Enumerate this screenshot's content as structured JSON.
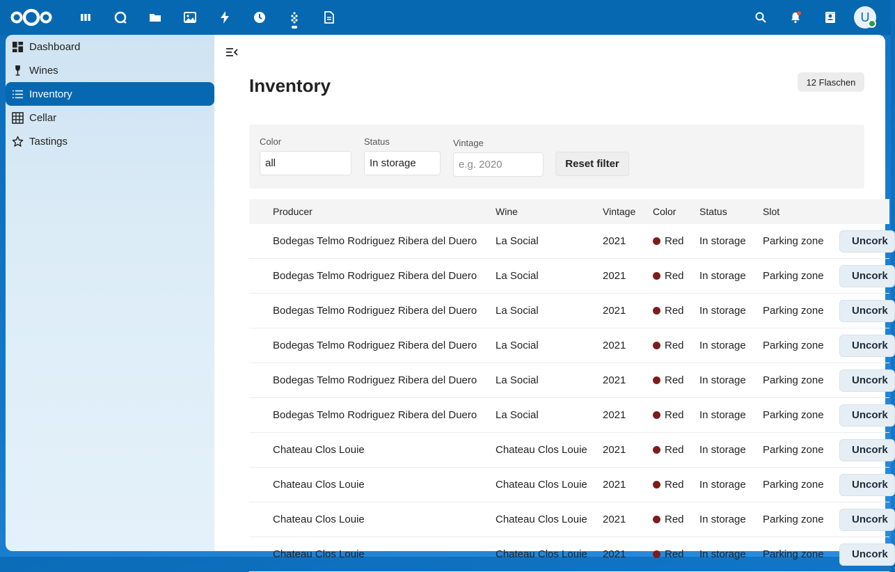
{
  "header": {
    "logo": "nextcloud-logo",
    "apps": [
      {
        "name": "dashboard-app-icon"
      },
      {
        "name": "talk-app-icon"
      },
      {
        "name": "files-app-icon"
      },
      {
        "name": "photos-app-icon"
      },
      {
        "name": "activity-app-icon"
      },
      {
        "name": "recent-app-icon"
      },
      {
        "name": "wine-app-icon"
      },
      {
        "name": "notes-app-icon"
      }
    ],
    "avatar_initial": "U"
  },
  "sidebar": {
    "items": [
      {
        "label": "Dashboard",
        "icon": "dashboard-icon"
      },
      {
        "label": "Wines",
        "icon": "wine-glass-icon"
      },
      {
        "label": "Inventory",
        "icon": "list-icon",
        "active": true
      },
      {
        "label": "Cellar",
        "icon": "grid-icon"
      },
      {
        "label": "Tastings",
        "icon": "star-icon"
      }
    ]
  },
  "main": {
    "title": "Inventory",
    "count_badge": "12 Flaschen",
    "filters": {
      "color_label": "Color",
      "color_value": "all",
      "status_label": "Status",
      "status_value": "In storage",
      "vintage_label": "Vintage",
      "vintage_placeholder": "e.g. 2020",
      "reset_label": "Reset filter"
    },
    "table": {
      "headers": [
        "Producer",
        "Wine",
        "Vintage",
        "Color",
        "Status",
        "Slot"
      ],
      "action_label": "Uncork",
      "rows": [
        {
          "producer": "Bodegas Telmo Rodriguez Ribera del Duero",
          "wine": "La Social",
          "vintage": "2021",
          "color": "Red",
          "status": "In storage",
          "slot": "Parking zone"
        },
        {
          "producer": "Bodegas Telmo Rodriguez Ribera del Duero",
          "wine": "La Social",
          "vintage": "2021",
          "color": "Red",
          "status": "In storage",
          "slot": "Parking zone"
        },
        {
          "producer": "Bodegas Telmo Rodriguez Ribera del Duero",
          "wine": "La Social",
          "vintage": "2021",
          "color": "Red",
          "status": "In storage",
          "slot": "Parking zone"
        },
        {
          "producer": "Bodegas Telmo Rodriguez Ribera del Duero",
          "wine": "La Social",
          "vintage": "2021",
          "color": "Red",
          "status": "In storage",
          "slot": "Parking zone"
        },
        {
          "producer": "Bodegas Telmo Rodriguez Ribera del Duero",
          "wine": "La Social",
          "vintage": "2021",
          "color": "Red",
          "status": "In storage",
          "slot": "Parking zone"
        },
        {
          "producer": "Bodegas Telmo Rodriguez Ribera del Duero",
          "wine": "La Social",
          "vintage": "2021",
          "color": "Red",
          "status": "In storage",
          "slot": "Parking zone"
        },
        {
          "producer": "Chateau Clos Louie",
          "wine": "Chateau Clos Louie",
          "vintage": "2021",
          "color": "Red",
          "status": "In storage",
          "slot": "Parking zone"
        },
        {
          "producer": "Chateau Clos Louie",
          "wine": "Chateau Clos Louie",
          "vintage": "2021",
          "color": "Red",
          "status": "In storage",
          "slot": "Parking zone"
        },
        {
          "producer": "Chateau Clos Louie",
          "wine": "Chateau Clos Louie",
          "vintage": "2021",
          "color": "Red",
          "status": "In storage",
          "slot": "Parking zone"
        },
        {
          "producer": "Chateau Clos Louie",
          "wine": "Chateau Clos Louie",
          "vintage": "2021",
          "color": "Red",
          "status": "In storage",
          "slot": "Parking zone"
        }
      ]
    }
  },
  "colors": {
    "brand": "#0568b0",
    "red_wine": "#7a1d1d"
  }
}
